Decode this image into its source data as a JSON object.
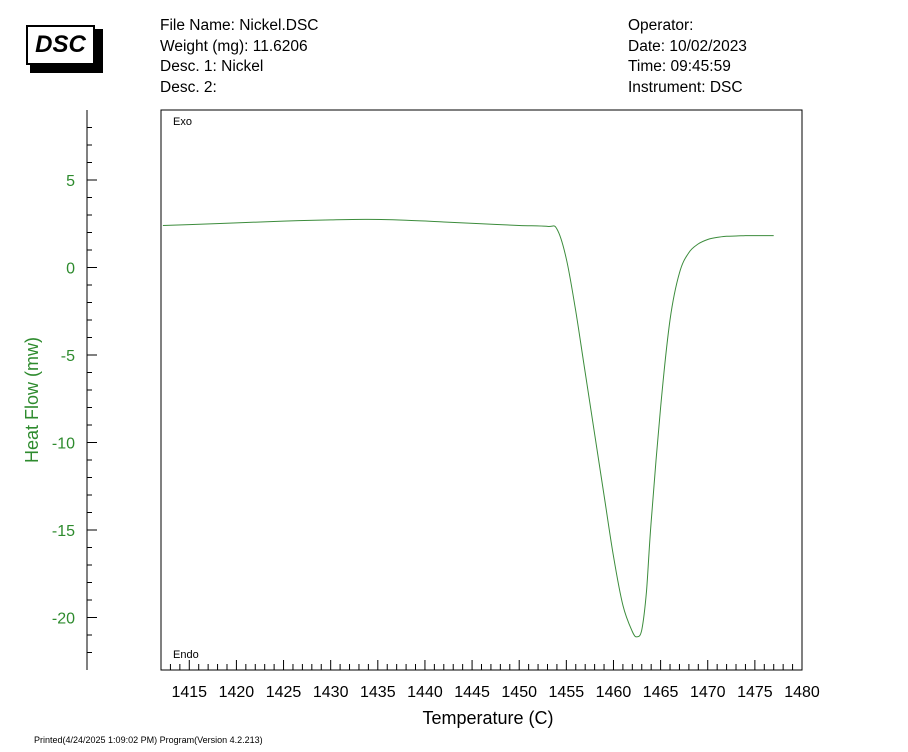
{
  "logo": "DSC",
  "header": {
    "file_name": "File Name: Nickel.DSC",
    "weight": "Weight (mg): 11.6206",
    "desc1": "Desc. 1: Nickel",
    "desc2": "Desc. 2:",
    "operator": "Operator:",
    "date": "Date: 10/02/2023",
    "time": "Time:  09:45:59",
    "instrument": "Instrument: DSC"
  },
  "footer": "Printed(4/24/2025 1:09:02 PM) Program(Version 4.2.213)",
  "colors": {
    "series": "#3c8c3c",
    "ylabel": "#2e8b2e",
    "axis": "#000000"
  },
  "chart_data": {
    "type": "line",
    "xlabel": "Temperature (C)",
    "ylabel": "Heat Flow (mw)",
    "xlim": [
      1412,
      1480
    ],
    "ylim": [
      -23,
      9
    ],
    "x_ticks": [
      1415,
      1420,
      1425,
      1430,
      1435,
      1440,
      1445,
      1450,
      1455,
      1460,
      1465,
      1470,
      1475,
      1480
    ],
    "y_ticks": [
      5,
      0,
      -5,
      -10,
      -15,
      -20
    ],
    "annotations": {
      "top": "Exo",
      "bottom": "Endo"
    },
    "grid": false,
    "series": [
      {
        "x": [
          1412.2,
          1415,
          1420,
          1425,
          1430,
          1434,
          1438,
          1442,
          1446,
          1450,
          1453,
          1454,
          1455,
          1456,
          1457,
          1458,
          1459,
          1460,
          1461,
          1462,
          1462.5,
          1463,
          1463.5,
          1464,
          1465,
          1466,
          1467,
          1468,
          1469,
          1470,
          1471,
          1472,
          1473,
          1474,
          1475,
          1477
        ],
        "y": [
          2.4,
          2.45,
          2.55,
          2.65,
          2.72,
          2.75,
          2.7,
          2.6,
          2.5,
          2.4,
          2.35,
          2.2,
          0.5,
          -2.5,
          -6.0,
          -9.5,
          -13.0,
          -16.5,
          -19.3,
          -20.8,
          -21.1,
          -20.7,
          -18.5,
          -14.5,
          -8.0,
          -3.0,
          -0.3,
          0.85,
          1.35,
          1.6,
          1.72,
          1.78,
          1.8,
          1.82,
          1.82,
          1.82
        ]
      }
    ]
  }
}
